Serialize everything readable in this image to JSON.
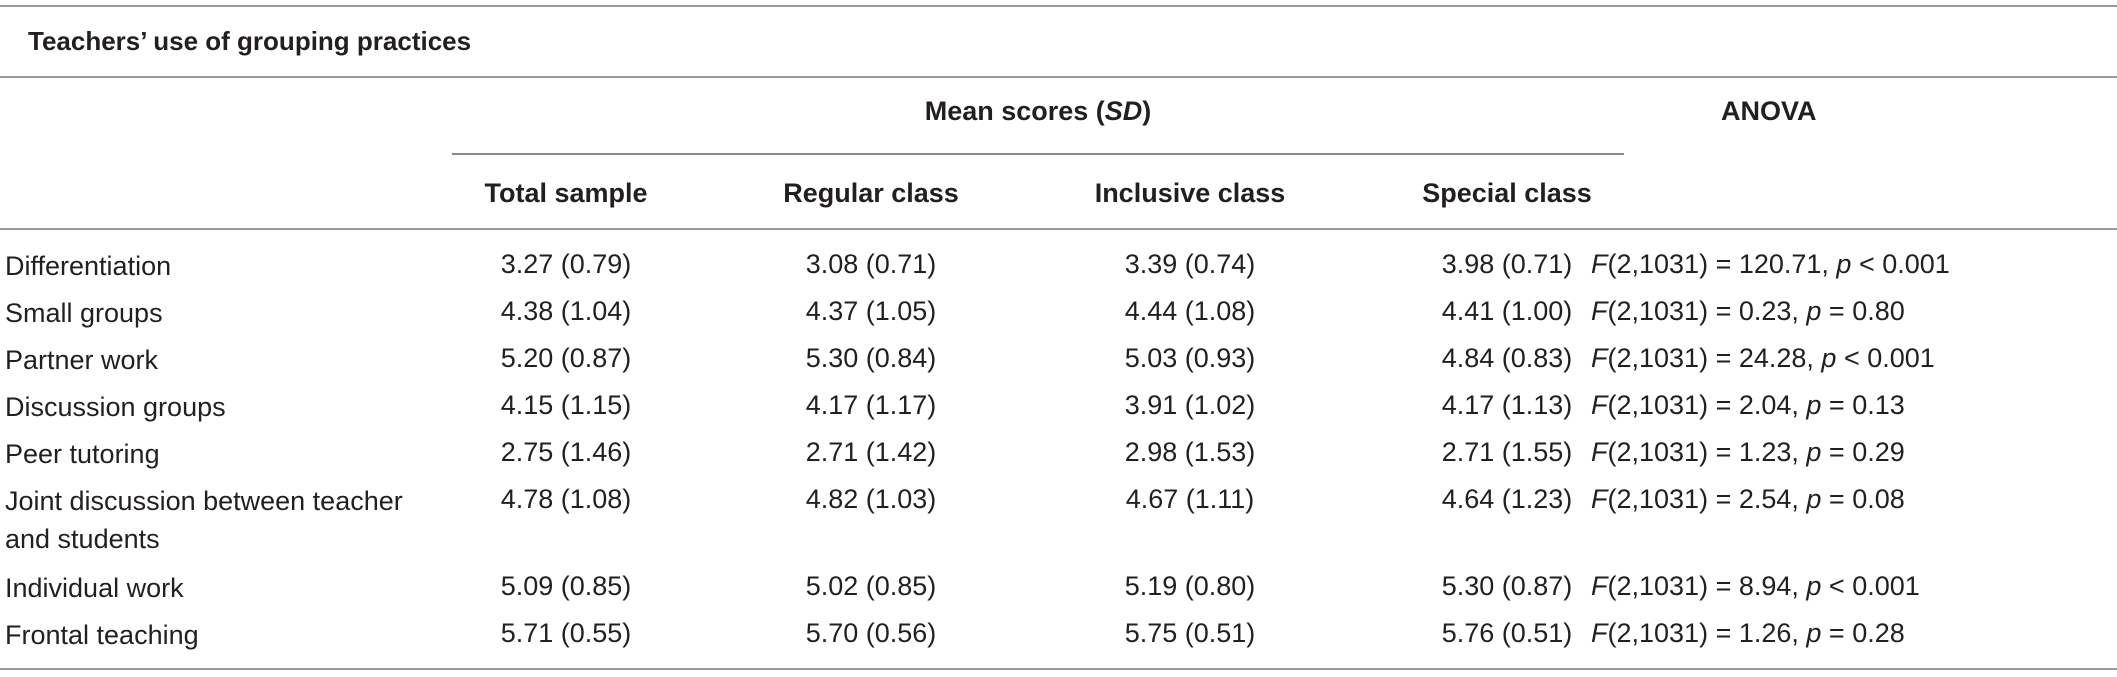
{
  "caption": "Teachers’ use of grouping practices",
  "headers": {
    "group_main": "Mean scores (",
    "group_sd": "SD",
    "group_close": ")",
    "anova": "ANOVA",
    "columns": [
      "Total sample",
      "Regular class",
      "Inclusive class",
      "Special class"
    ]
  },
  "rows": [
    {
      "label": "Differentiation",
      "values": [
        "3.27 (0.79)",
        "3.08 (0.71)",
        "3.39 (0.74)",
        "3.98 (0.71)"
      ],
      "anova_f": "(2,1031) = 120.71, ",
      "anova_p": " < 0.001"
    },
    {
      "label": "Small groups",
      "values": [
        "4.38 (1.04)",
        "4.37 (1.05)",
        "4.44 (1.08)",
        "4.41 (1.00)"
      ],
      "anova_f": "(2,1031) = 0.23, ",
      "anova_p": " = 0.80"
    },
    {
      "label": "Partner work",
      "values": [
        "5.20 (0.87)",
        "5.30 (0.84)",
        "5.03 (0.93)",
        "4.84 (0.83)"
      ],
      "anova_f": "(2,1031) = 24.28, ",
      "anova_p": " < 0.001"
    },
    {
      "label": "Discussion groups",
      "values": [
        "4.15 (1.15)",
        "4.17 (1.17)",
        "3.91 (1.02)",
        "4.17 (1.13)"
      ],
      "anova_f": "(2,1031) = 2.04, ",
      "anova_p": " = 0.13"
    },
    {
      "label": "Peer tutoring",
      "values": [
        "2.75 (1.46)",
        "2.71 (1.42)",
        "2.98 (1.53)",
        "2.71 (1.55)"
      ],
      "anova_f": "(2,1031) = 1.23, ",
      "anova_p": " = 0.29"
    },
    {
      "label": "Joint discussion between teacher and students",
      "values": [
        "4.78 (1.08)",
        "4.82 (1.03)",
        "4.67 (1.11)",
        "4.64 (1.23)"
      ],
      "anova_f": "(2,1031) = 2.54, ",
      "anova_p": " = 0.08"
    },
    {
      "label": "Individual work",
      "values": [
        "5.09 (0.85)",
        "5.02 (0.85)",
        "5.19 (0.80)",
        "5.30 (0.87)"
      ],
      "anova_f": "(2,1031) = 8.94, ",
      "anova_p": " < 0.001"
    },
    {
      "label": "Frontal teaching",
      "values": [
        "5.71 (0.55)",
        "5.70 (0.56)",
        "5.75 (0.51)",
        "5.76 (0.51)"
      ],
      "anova_f": "(2,1031) = 1.26, ",
      "anova_p": " = 0.28"
    }
  ],
  "anova_f_symbol": "F",
  "anova_p_symbol": "p"
}
